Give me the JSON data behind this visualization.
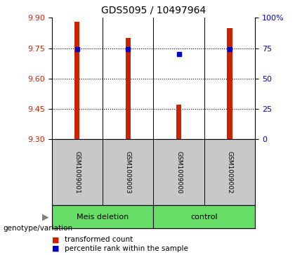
{
  "title": "GDS5095 / 10497964",
  "samples": [
    "GSM1009001",
    "GSM1009003",
    "GSM1009000",
    "GSM1009002"
  ],
  "bar_values": [
    9.88,
    9.8,
    9.47,
    9.85
  ],
  "dot_values": [
    9.745,
    9.745,
    9.72,
    9.745
  ],
  "ylim": [
    9.3,
    9.9
  ],
  "yticks": [
    9.3,
    9.45,
    9.6,
    9.75,
    9.9
  ],
  "right_yticks": [
    0,
    25,
    50,
    75,
    100
  ],
  "right_ylim": [
    0,
    100
  ],
  "bar_color": "#cc2200",
  "dot_color": "#0000cc",
  "label_bg": "#c8c8c8",
  "group_bg": "#66dd66",
  "group_label": "genotype/variation",
  "legend_bar": "transformed count",
  "legend_dot": "percentile rank within the sample",
  "bar_base": 9.3,
  "groups": [
    {
      "indices": [
        0,
        1
      ],
      "label": "Meis deletion"
    },
    {
      "indices": [
        2,
        3
      ],
      "label": "control"
    }
  ]
}
